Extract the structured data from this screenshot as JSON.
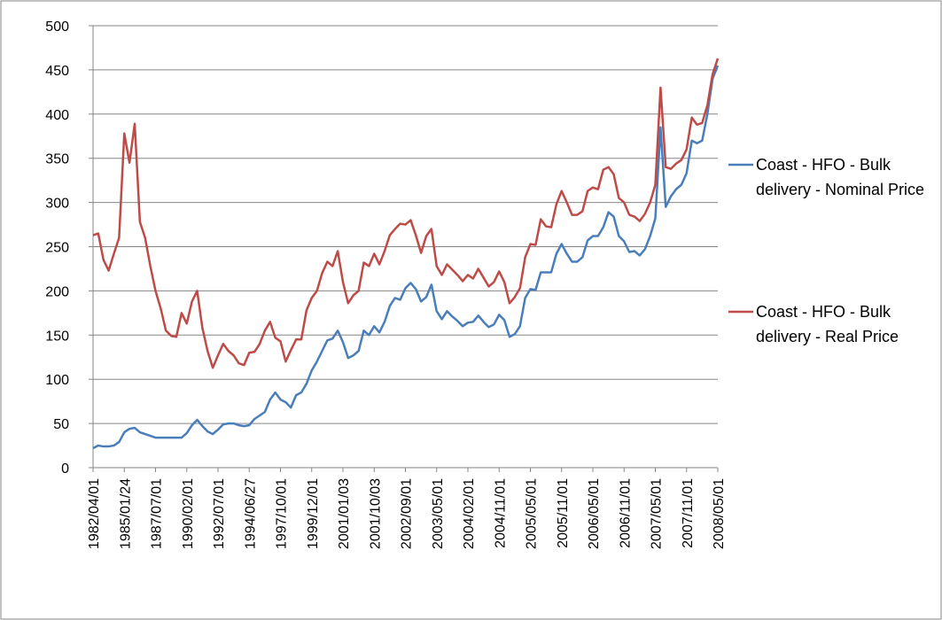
{
  "chart_data": {
    "type": "line",
    "categories": [
      "1982/04/01",
      null,
      null,
      null,
      null,
      null,
      "1985/01/24",
      null,
      null,
      null,
      null,
      null,
      "1987/07/01",
      null,
      null,
      null,
      null,
      null,
      "1990/02/01",
      null,
      null,
      null,
      null,
      null,
      "1992/07/01",
      null,
      null,
      null,
      null,
      null,
      "1994/06/27",
      null,
      null,
      null,
      null,
      null,
      "1997/10/01",
      null,
      null,
      null,
      null,
      null,
      "1999/12/01",
      null,
      null,
      null,
      null,
      null,
      "2001/01/03",
      null,
      null,
      null,
      null,
      null,
      "2001/10/03",
      null,
      null,
      null,
      null,
      null,
      "2002/09/01",
      null,
      null,
      null,
      null,
      null,
      "2003/05/01",
      null,
      null,
      null,
      null,
      null,
      "2004/02/01",
      null,
      null,
      null,
      null,
      null,
      "2004/11/01",
      null,
      null,
      null,
      null,
      null,
      "2005/05/01",
      null,
      null,
      null,
      null,
      null,
      "2005/11/01",
      null,
      null,
      null,
      null,
      null,
      "2006/05/01",
      null,
      null,
      null,
      null,
      null,
      "2006/11/01",
      null,
      null,
      null,
      null,
      null,
      "2007/05/01",
      null,
      null,
      null,
      null,
      null,
      "2007/11/01",
      null,
      null,
      null,
      null,
      null,
      "2008/05/01"
    ],
    "series": [
      {
        "name": "Coast - HFO - Bulk delivery - Nominal Price",
        "color": "#4a7ebb",
        "values": [
          22,
          25,
          24,
          24,
          25,
          29,
          40,
          44,
          45,
          40,
          38,
          36,
          34,
          34,
          34,
          34,
          34,
          34,
          39,
          48,
          54,
          47,
          41,
          38,
          43,
          49,
          50,
          50,
          48,
          47,
          48,
          55,
          59,
          63,
          77,
          85,
          77,
          74,
          68,
          82,
          85,
          95,
          110,
          120,
          132,
          144,
          146,
          155,
          142,
          124,
          127,
          132,
          155,
          150,
          160,
          153,
          165,
          183,
          192,
          190,
          203,
          209,
          202,
          188,
          193,
          207,
          177,
          168,
          177,
          171,
          166,
          160,
          164,
          165,
          172,
          165,
          159,
          162,
          173,
          167,
          148,
          151,
          160,
          192,
          202,
          201,
          221,
          221,
          221,
          242,
          253,
          242,
          233,
          233,
          238,
          257,
          262,
          262,
          272,
          289,
          284,
          262,
          256,
          244,
          245,
          240,
          247,
          262,
          282,
          385,
          295,
          307,
          315,
          320,
          333,
          370,
          367,
          370,
          400,
          440,
          455
        ]
      },
      {
        "name": "Coast - HFO - Bulk delivery - Real Price",
        "color": "#be4b48",
        "values": [
          263,
          265,
          235,
          223,
          242,
          260,
          378,
          345,
          389,
          278,
          260,
          228,
          200,
          180,
          155,
          149,
          148,
          175,
          163,
          188,
          200,
          158,
          132,
          113,
          127,
          140,
          132,
          127,
          118,
          116,
          130,
          131,
          140,
          155,
          165,
          147,
          143,
          120,
          133,
          145,
          145,
          178,
          192,
          200,
          220,
          233,
          228,
          245,
          210,
          186,
          195,
          200,
          232,
          228,
          242,
          230,
          245,
          263,
          270,
          276,
          275,
          280,
          263,
          243,
          262,
          270,
          228,
          218,
          230,
          224,
          218,
          211,
          218,
          214,
          225,
          215,
          205,
          210,
          222,
          210,
          186,
          193,
          203,
          238,
          253,
          252,
          281,
          273,
          272,
          298,
          313,
          300,
          286,
          286,
          290,
          313,
          317,
          315,
          337,
          340,
          332,
          305,
          300,
          286,
          284,
          279,
          287,
          300,
          320,
          430,
          340,
          338,
          344,
          348,
          360,
          396,
          388,
          390,
          410,
          445,
          463
        ]
      }
    ],
    "ylim": [
      0,
      500
    ],
    "yticks": [
      0,
      50,
      100,
      150,
      200,
      250,
      300,
      350,
      400,
      450,
      500
    ],
    "grid": true,
    "legend": "right"
  }
}
